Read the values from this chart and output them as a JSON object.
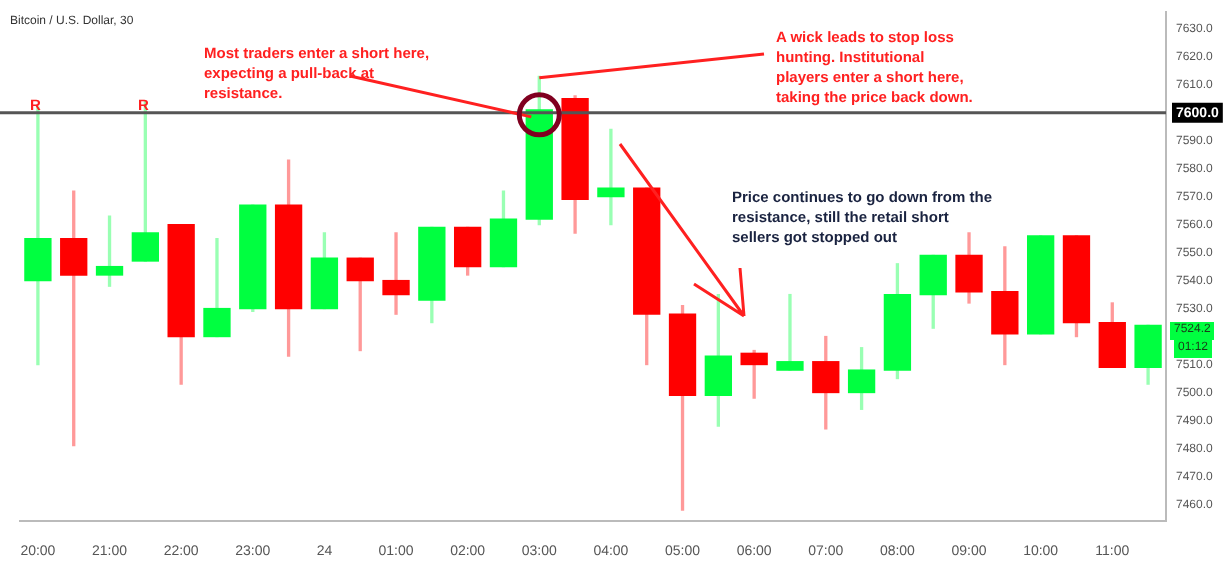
{
  "chart_data": {
    "type": "candlestick",
    "title": "Bitcoin / U.S. Dollar, 30",
    "categories": [
      "20:00",
      null,
      "21:00",
      null,
      "22:00",
      null,
      "23:00",
      null,
      "24",
      null,
      "01:00",
      null,
      "02:00",
      null,
      "03:00",
      null,
      "04:00",
      null,
      "05:00",
      null,
      "06:00",
      null,
      "07:00",
      null,
      "08:00",
      null,
      "09:00",
      null,
      "10:00",
      null,
      "11:00",
      null
    ],
    "ohlc": [
      [
        7540,
        7602,
        7510,
        7555
      ],
      [
        7555,
        7572,
        7481,
        7542
      ],
      [
        7542,
        7563,
        7538,
        7545
      ],
      [
        7547,
        7604,
        7547,
        7557
      ],
      [
        7560,
        7560,
        7503,
        7520
      ],
      [
        7520,
        7555,
        7520,
        7530
      ],
      [
        7530,
        7567,
        7529,
        7567
      ],
      [
        7567,
        7583,
        7513,
        7530
      ],
      [
        7530,
        7557,
        7530,
        7548
      ],
      [
        7548,
        7548,
        7515,
        7540
      ],
      [
        7540,
        7557,
        7528,
        7535
      ],
      [
        7533,
        7559,
        7525,
        7559
      ],
      [
        7559,
        7559,
        7542,
        7545
      ],
      [
        7545,
        7572,
        7545,
        7562
      ],
      [
        7562,
        7613,
        7560,
        7601
      ],
      [
        7605,
        7606,
        7557,
        7569
      ],
      [
        7570,
        7594,
        7560,
        7573
      ],
      [
        7573,
        7573,
        7510,
        7528
      ],
      [
        7528,
        7531,
        7458,
        7499
      ],
      [
        7499,
        7535,
        7488,
        7513
      ],
      [
        7514,
        7515,
        7498,
        7510
      ],
      [
        7508,
        7535,
        7508,
        7511
      ],
      [
        7511,
        7520,
        7487,
        7500
      ],
      [
        7500,
        7516,
        7494,
        7508
      ],
      [
        7508,
        7546,
        7505,
        7535
      ],
      [
        7535,
        7549,
        7523,
        7549
      ],
      [
        7549,
        7557,
        7532,
        7536
      ],
      [
        7536,
        7552,
        7510,
        7521
      ],
      [
        7521,
        7556,
        7521,
        7556
      ],
      [
        7556,
        7556,
        7520,
        7525
      ],
      [
        7525,
        7532,
        7509,
        7509
      ],
      [
        7509,
        7524,
        7503,
        7524
      ]
    ],
    "colors": [
      "#00ff40",
      "#ff0000",
      "#00ff40",
      "#00ff40",
      "#ff0000",
      "#00ff40",
      "#00ff40",
      "#ff0000",
      "#00ff40",
      "#ff0000",
      "#ff0000",
      "#00ff40",
      "#ff0000",
      "#00ff40",
      "#00ff40",
      "#ff0000",
      "#00ff40",
      "#ff0000",
      "#ff0000",
      "#00ff40",
      "#ff0000",
      "#00ff40",
      "#ff0000",
      "#00ff40",
      "#00ff40",
      "#00ff40",
      "#ff0000",
      "#ff0000",
      "#00ff40",
      "#ff0000",
      "#ff0000",
      "#00ff40"
    ],
    "ylim": [
      7454,
      7636
    ],
    "yticks": [
      {
        "value": 7460,
        "label": "7460.0"
      },
      {
        "value": 7470,
        "label": "7470.0"
      },
      {
        "value": 7480,
        "label": "7480.0"
      },
      {
        "value": 7490,
        "label": "7490.0"
      },
      {
        "value": 7500,
        "label": "7500.0"
      },
      {
        "value": 7510,
        "label": "7510.0"
      },
      {
        "value": 7530,
        "label": "7530.0"
      },
      {
        "value": 7540,
        "label": "7540.0"
      },
      {
        "value": 7550,
        "label": "7550.0"
      },
      {
        "value": 7560,
        "label": "7560.0"
      },
      {
        "value": 7570,
        "label": "7570.0"
      },
      {
        "value": 7580,
        "label": "7580.0"
      },
      {
        "value": 7590,
        "label": "7590.0"
      },
      {
        "value": 7610,
        "label": "7610.0"
      },
      {
        "value": 7620,
        "label": "7620.0"
      },
      {
        "value": 7630,
        "label": "7630.0"
      }
    ],
    "ref_lines": [
      {
        "axis": "y",
        "value": 7600,
        "label": "7600.0",
        "color": "#555555"
      }
    ],
    "annotations": [
      {
        "text": "Most traders enter a short here, expecting a pull-back at resistance.",
        "x": "03:00",
        "y": 7600
      },
      {
        "text": "A wick leads to stop loss hunting. Institutional players enter a short here, taking the price back down.",
        "x": "03:00",
        "y": 7613
      },
      "Price continues to go down from the resistance, still the retail short sellers got stopped out",
      "R",
      "R",
      "7524.2",
      "01:12"
    ]
  }
}
